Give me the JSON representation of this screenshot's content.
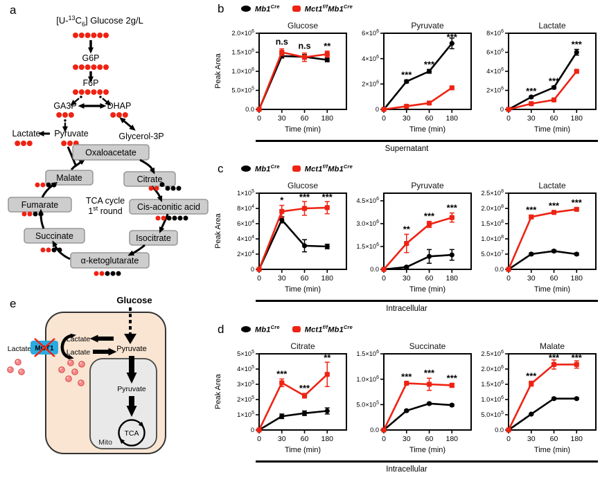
{
  "panels": {
    "a": "a",
    "b": "b",
    "c": "c",
    "d": "d",
    "e": "e"
  },
  "colors": {
    "red": "#EE2313",
    "black": "#000000",
    "blue": "#29ABE2",
    "cell_fill": "#F9E5D2",
    "mito_fill": "#E9E9E9",
    "box_fill": "#CDCDCD",
    "box_border": "#8A8A8A",
    "pink_fill": "#F5898B",
    "pink_border": "#D94A4A"
  },
  "legend": {
    "entries": [
      {
        "marker": "circle",
        "color_key": "black",
        "parts": [
          {
            "t": "Mb1"
          },
          {
            "t": "Cre",
            "sup": true
          }
        ]
      },
      {
        "marker": "square",
        "color_key": "red",
        "parts": [
          {
            "t": "Mct1"
          },
          {
            "t": "f/f",
            "sup": true
          },
          {
            "t": "Mb1"
          },
          {
            "t": "Cre",
            "sup": true
          }
        ]
      }
    ]
  },
  "pathway": {
    "title_parts": [
      {
        "t": "[U-"
      },
      {
        "t": "13",
        "sup": true
      },
      {
        "t": "C"
      },
      {
        "t": "6",
        "sub": true
      },
      {
        "t": "] Glucose  2g/L"
      }
    ],
    "center_line1": "TCA cycle",
    "center_line2_parts": [
      {
        "t": "1"
      },
      {
        "t": "st",
        "sup": true
      },
      {
        "t": " round"
      }
    ],
    "nodes": {
      "glucose_dots": "rrrrrr",
      "g6p": {
        "label": "G6P",
        "dots": "rrrrrr"
      },
      "f6p": {
        "label": "F6P",
        "dots": "rrrrrr"
      },
      "ga3p": {
        "label": "GA3P",
        "dots": "rrr"
      },
      "dhap": {
        "label": "DHAP",
        "dots": "rrr"
      },
      "lactate": {
        "label": "Lactate",
        "dots": "rrr"
      },
      "pyruvate": {
        "label": "Pyruvate",
        "dots": "rrr"
      },
      "glycerol3p": {
        "label": "Glycerol-3P",
        "dots": ""
      },
      "oxaloacetate": {
        "label": "Oxaloacetate",
        "dots": ""
      },
      "malate": {
        "label": "Malate",
        "dots": "rrkk"
      },
      "citrate": {
        "label": "Citrate",
        "dots": "rrkkkk"
      },
      "fumarate": {
        "label": "Fumarate",
        "dots": "rrkk"
      },
      "cis_aconitic": {
        "label": "Cis-aconitic acid",
        "dots": "rrkkkk"
      },
      "succinate": {
        "label": "Succinate",
        "dots": "rrkk"
      },
      "isocitrate": {
        "label": "Isocitrate",
        "dots": ""
      },
      "akg": {
        "label": "α-ketoglutarate",
        "dots": "rrkkk"
      }
    }
  },
  "cell_diagram": {
    "glucose": "Glucose",
    "pyruvate_cytosol": "Pyruvate",
    "lactate_top": "Lactate",
    "lactate_bottom": "Lactate",
    "lactate_outside": "Lactate",
    "mct1": "MCT1",
    "pyruvate_mito": "Pyruvate",
    "tca": "TCA",
    "mito": "Mito"
  },
  "chart_data": {
    "type": "line",
    "x_categories": [
      "0",
      "30",
      "60",
      "180"
    ],
    "xlabel": "Time (min)",
    "ylabel": "Peak Area",
    "legend_position": "top",
    "rows": [
      {
        "panel": "b",
        "group_label": "Supernatant",
        "charts": [
          {
            "title": "Glucose",
            "ymax": 2000000,
            "ytick_values": [
              0,
              500000,
              1000000,
              1500000,
              2000000
            ],
            "ytick_labels": [
              "0.0",
              "5.0×10^5",
              "1.0×10^6",
              "1.5×10^6",
              "2.0×10^6"
            ],
            "sig": [
              {
                "xi": 1,
                "text": "n.s"
              },
              {
                "xi": 2,
                "text": "n.s"
              },
              {
                "xi": 3,
                "text": "**"
              }
            ],
            "series": [
              {
                "name": "Mb1Cre",
                "marker": "circle",
                "color_key": "black",
                "values": [
                  0,
                  1400000,
                  1380000,
                  1300000
                ],
                "err": [
                  0,
                  50000,
                  60000,
                  50000
                ]
              },
              {
                "name": "Mct1f/fMb1Cre",
                "marker": "square",
                "color_key": "red",
                "values": [
                  0,
                  1500000,
                  1370000,
                  1450000
                ],
                "err": [
                  0,
                  90000,
                  110000,
                  80000
                ]
              }
            ]
          },
          {
            "title": "Pyruvate",
            "ymax": 6000000,
            "ytick_values": [
              0,
              2000000,
              4000000,
              6000000
            ],
            "ytick_labels": [
              "0",
              "2×10^6",
              "4×10^6",
              "6×10^6"
            ],
            "sig": [
              {
                "xi": 1,
                "text": "***"
              },
              {
                "xi": 2,
                "text": "***"
              },
              {
                "xi": 3,
                "text": "***"
              }
            ],
            "series": [
              {
                "name": "Mb1Cre",
                "marker": "circle",
                "color_key": "black",
                "values": [
                  0,
                  2200000,
                  3000000,
                  5200000
                ],
                "err": [
                  0,
                  120000,
                  150000,
                  420000
                ]
              },
              {
                "name": "Mct1f/fMb1Cre",
                "marker": "square",
                "color_key": "red",
                "values": [
                  0,
                  250000,
                  500000,
                  1700000
                ],
                "err": [
                  0,
                  40000,
                  60000,
                  110000
                ]
              }
            ]
          },
          {
            "title": "Lactate",
            "ymax": 8000000,
            "ytick_values": [
              0,
              2000000,
              4000000,
              6000000,
              8000000
            ],
            "ytick_labels": [
              "0",
              "2×10^6",
              "4×10^6",
              "6×10^6",
              "8×10^6"
            ],
            "sig": [
              {
                "xi": 1,
                "text": "***"
              },
              {
                "xi": 2,
                "text": "***"
              },
              {
                "xi": 3,
                "text": "***"
              }
            ],
            "series": [
              {
                "name": "Mb1Cre",
                "marker": "circle",
                "color_key": "black",
                "values": [
                  0,
                  1300000,
                  2300000,
                  6000000
                ],
                "err": [
                  0,
                  100000,
                  150000,
                  300000
                ]
              },
              {
                "name": "Mct1f/fMb1Cre",
                "marker": "square",
                "color_key": "red",
                "values": [
                  0,
                  600000,
                  1000000,
                  4000000
                ],
                "err": [
                  0,
                  60000,
                  80000,
                  150000
                ]
              }
            ]
          }
        ]
      },
      {
        "panel": "c",
        "group_label": "Intracellular",
        "charts": [
          {
            "title": "Glucose",
            "ymax": 100000,
            "ytick_values": [
              0,
              20000,
              40000,
              60000,
              80000,
              100000
            ],
            "ytick_labels": [
              "0",
              "2×10^4",
              "4×10^4",
              "6×10^4",
              "8×10^4",
              "1×10^5"
            ],
            "sig": [
              {
                "xi": 1,
                "text": "*"
              },
              {
                "xi": 2,
                "text": "***"
              },
              {
                "xi": 3,
                "text": "***"
              }
            ],
            "series": [
              {
                "name": "Mb1Cre",
                "marker": "circle",
                "color_key": "black",
                "values": [
                  0,
                  65000,
                  31000,
                  30000
                ],
                "err": [
                  0,
                  4000,
                  8000,
                  3000
                ]
              },
              {
                "name": "Mct1f/fMb1Cre",
                "marker": "square",
                "color_key": "red",
                "values": [
                  0,
                  76000,
                  80000,
                  81000
                ],
                "err": [
                  0,
                  8000,
                  9000,
                  8000
                ]
              }
            ]
          },
          {
            "title": "Pyruvate",
            "ymax": 5000000,
            "ytick_values": [
              0,
              1500000,
              3000000,
              4500000
            ],
            "ytick_labels": [
              "0.0",
              "1.5×10^6",
              "3.0×10^6",
              "4.5×10^6"
            ],
            "sig": [
              {
                "xi": 1,
                "text": "**"
              },
              {
                "xi": 2,
                "text": "***"
              },
              {
                "xi": 3,
                "text": "***"
              }
            ],
            "series": [
              {
                "name": "Mb1Cre",
                "marker": "circle",
                "color_key": "black",
                "values": [
                  0,
                  150000,
                  850000,
                  950000
                ],
                "err": [
                  0,
                  60000,
                  450000,
                  350000
                ]
              },
              {
                "name": "Mct1f/fMb1Cre",
                "marker": "square",
                "color_key": "red",
                "values": [
                  0,
                  1700000,
                  2950000,
                  3400000
                ],
                "err": [
                  0,
                  600000,
                  200000,
                  300000
                ]
              }
            ]
          },
          {
            "title": "Lactate",
            "ymax": 250000000,
            "ytick_values": [
              0,
              50000000,
              100000000,
              150000000,
              200000000,
              250000000
            ],
            "ytick_labels": [
              "0.0",
              "5.0×10^7",
              "1.0×10^8",
              "1.5×10^8",
              "2.0×10^8",
              "2.5×10^8"
            ],
            "sig": [
              {
                "xi": 1,
                "text": "***"
              },
              {
                "xi": 2,
                "text": "***"
              },
              {
                "xi": 3,
                "text": "***"
              }
            ],
            "series": [
              {
                "name": "Mb1Cre",
                "marker": "circle",
                "color_key": "black",
                "values": [
                  0,
                  50000000,
                  60000000,
                  50000000
                ],
                "err": [
                  0,
                  4000000,
                  4000000,
                  4000000
                ]
              },
              {
                "name": "Mct1f/fMb1Cre",
                "marker": "square",
                "color_key": "red",
                "values": [
                  0,
                  172000000,
                  187000000,
                  197000000
                ],
                "err": [
                  0,
                  6000000,
                  5000000,
                  5000000
                ]
              }
            ]
          }
        ]
      },
      {
        "panel": "d",
        "group_label": "Intracellular",
        "charts": [
          {
            "title": "Citrate",
            "ymax": 500000,
            "ytick_values": [
              0,
              100000,
              200000,
              300000,
              400000,
              500000
            ],
            "ytick_labels": [
              "0",
              "1×10^5",
              "2×10^5",
              "3×10^5",
              "4×10^5",
              "5×10^5"
            ],
            "sig": [
              {
                "xi": 1,
                "text": "***"
              },
              {
                "xi": 2,
                "text": "***"
              },
              {
                "xi": 3,
                "text": "**"
              }
            ],
            "series": [
              {
                "name": "Mb1Cre",
                "marker": "circle",
                "color_key": "black",
                "values": [
                  0,
                  90000,
                  110000,
                  125000
                ],
                "err": [
                  0,
                  15000,
                  15000,
                  20000
                ]
              },
              {
                "name": "Mct1f/fMb1Cre",
                "marker": "square",
                "color_key": "red",
                "values": [
                  0,
                  310000,
                  225000,
                  365000
                ],
                "err": [
                  0,
                  25000,
                  15000,
                  80000
                ]
              }
            ]
          },
          {
            "title": "Succinate",
            "ymax": 1500000,
            "ytick_values": [
              0,
              500000,
              1000000,
              1500000
            ],
            "ytick_labels": [
              "0.0",
              "5.0×10^5",
              "1.0×10^6",
              "1.5×10^6"
            ],
            "sig": [
              {
                "xi": 1,
                "text": "***"
              },
              {
                "xi": 2,
                "text": "***"
              },
              {
                "xi": 3,
                "text": "***"
              }
            ],
            "series": [
              {
                "name": "Mb1Cre",
                "marker": "circle",
                "color_key": "black",
                "values": [
                  0,
                  380000,
                  520000,
                  490000
                ],
                "err": [
                  0,
                  20000,
                  20000,
                  20000
                ]
              },
              {
                "name": "Mct1f/fMb1Cre",
                "marker": "square",
                "color_key": "red",
                "values": [
                  0,
                  920000,
                  900000,
                  880000
                ],
                "err": [
                  0,
                  30000,
                  120000,
                  40000
                ]
              }
            ]
          },
          {
            "title": "Malate",
            "ymax": 2500000,
            "ytick_values": [
              0,
              500000,
              1000000,
              1500000,
              2000000,
              2500000
            ],
            "ytick_labels": [
              "0.0",
              "5.0×10^5",
              "1.0×10^6",
              "1.5×10^6",
              "2.0×10^6",
              "2.5×10^6"
            ],
            "sig": [
              {
                "xi": 1,
                "text": "***"
              },
              {
                "xi": 2,
                "text": "***"
              },
              {
                "xi": 3,
                "text": "***"
              }
            ],
            "series": [
              {
                "name": "Mb1Cre",
                "marker": "circle",
                "color_key": "black",
                "values": [
                  0,
                  520000,
                  1030000,
                  1030000
                ],
                "err": [
                  0,
                  20000,
                  30000,
                  30000
                ]
              },
              {
                "name": "Mct1f/fMb1Cre",
                "marker": "square",
                "color_key": "red",
                "values": [
                  0,
                  1520000,
                  2150000,
                  2150000
                ],
                "err": [
                  0,
                  80000,
                  150000,
                  120000
                ]
              }
            ]
          }
        ]
      }
    ]
  }
}
